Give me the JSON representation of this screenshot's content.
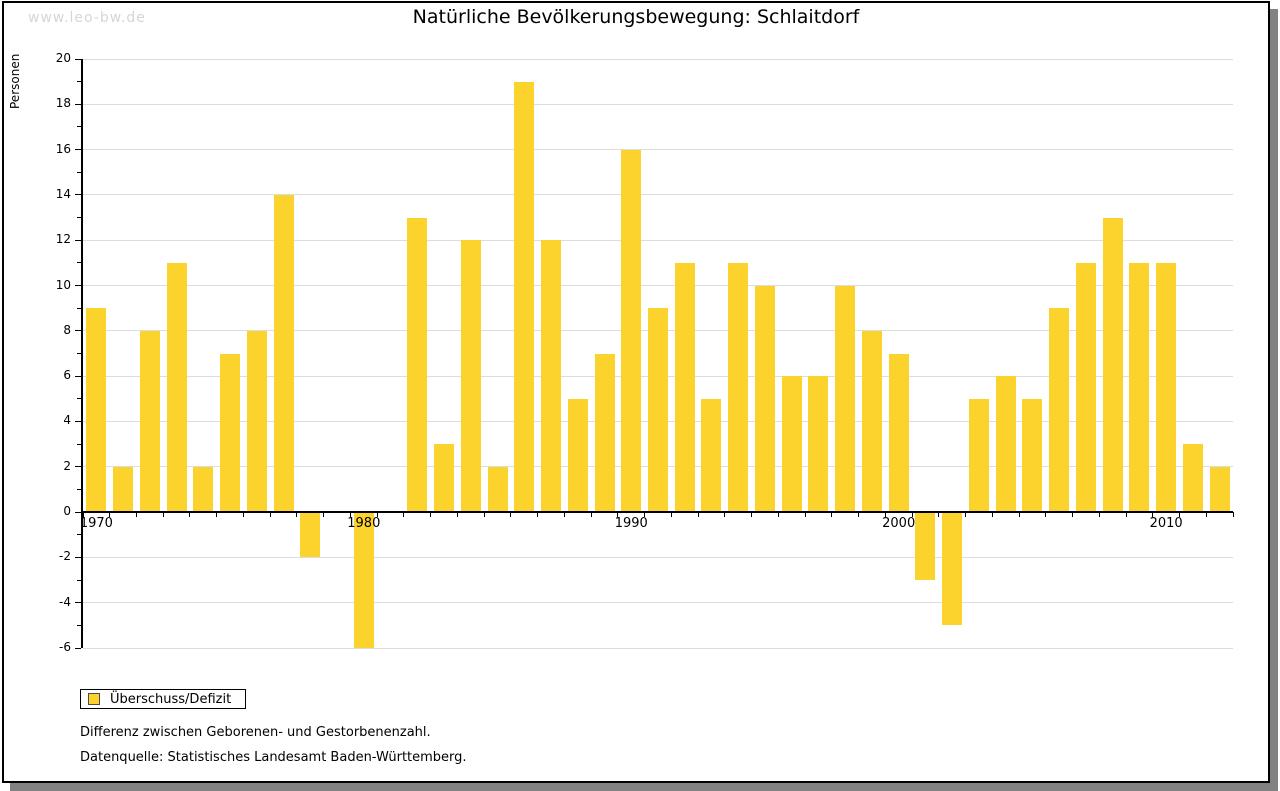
{
  "watermark": "www.leo-bw.de",
  "title": "Natürliche Bevölkerungsbewegung: Schlaitdorf",
  "y_axis_label": "Personen",
  "legend": {
    "label": "Überschuss/Defizit"
  },
  "footnotes": [
    "Differenz zwischen Geborenen- und Gestorbenenzahl.",
    "Datenquelle: Statistisches Landesamt Baden-Württemberg."
  ],
  "colors": {
    "bar": "#FCD32C",
    "gridline": "#dcdcdc",
    "axis": "#000000",
    "text": "#000000",
    "watermark": "#d6d6d6",
    "shadow": "#828282"
  },
  "chart_data": {
    "type": "bar",
    "title": "Natürliche Bevölkerungsbewegung: Schlaitdorf",
    "xlabel": "",
    "ylabel": "Personen",
    "categories": [
      1970,
      1971,
      1972,
      1973,
      1974,
      1975,
      1976,
      1977,
      1978,
      1979,
      1980,
      1981,
      1982,
      1983,
      1984,
      1985,
      1986,
      1987,
      1988,
      1989,
      1990,
      1991,
      1992,
      1993,
      1994,
      1995,
      1996,
      1997,
      1998,
      1999,
      2000,
      2001,
      2002,
      2003,
      2004,
      2005,
      2006,
      2007,
      2008,
      2009,
      2010,
      2011,
      2012
    ],
    "values": [
      9,
      2,
      8,
      11,
      2,
      7,
      8,
      14,
      -2,
      0,
      -6,
      0,
      13,
      3,
      12,
      2,
      19,
      12,
      5,
      7,
      16,
      9,
      11,
      5,
      11,
      10,
      6,
      6,
      10,
      8,
      7,
      -3,
      -5,
      5,
      6,
      5,
      9,
      11,
      13,
      11,
      11,
      3,
      2
    ],
    "series_name": "Überschuss/Defizit",
    "ylim": [
      -6,
      20
    ],
    "ytick_step": 2,
    "xtick_labels": [
      1970,
      1980,
      1990,
      2000,
      2010
    ],
    "grid": true,
    "legend_position": "bottom-left",
    "bar_color": "#FCD32C"
  }
}
